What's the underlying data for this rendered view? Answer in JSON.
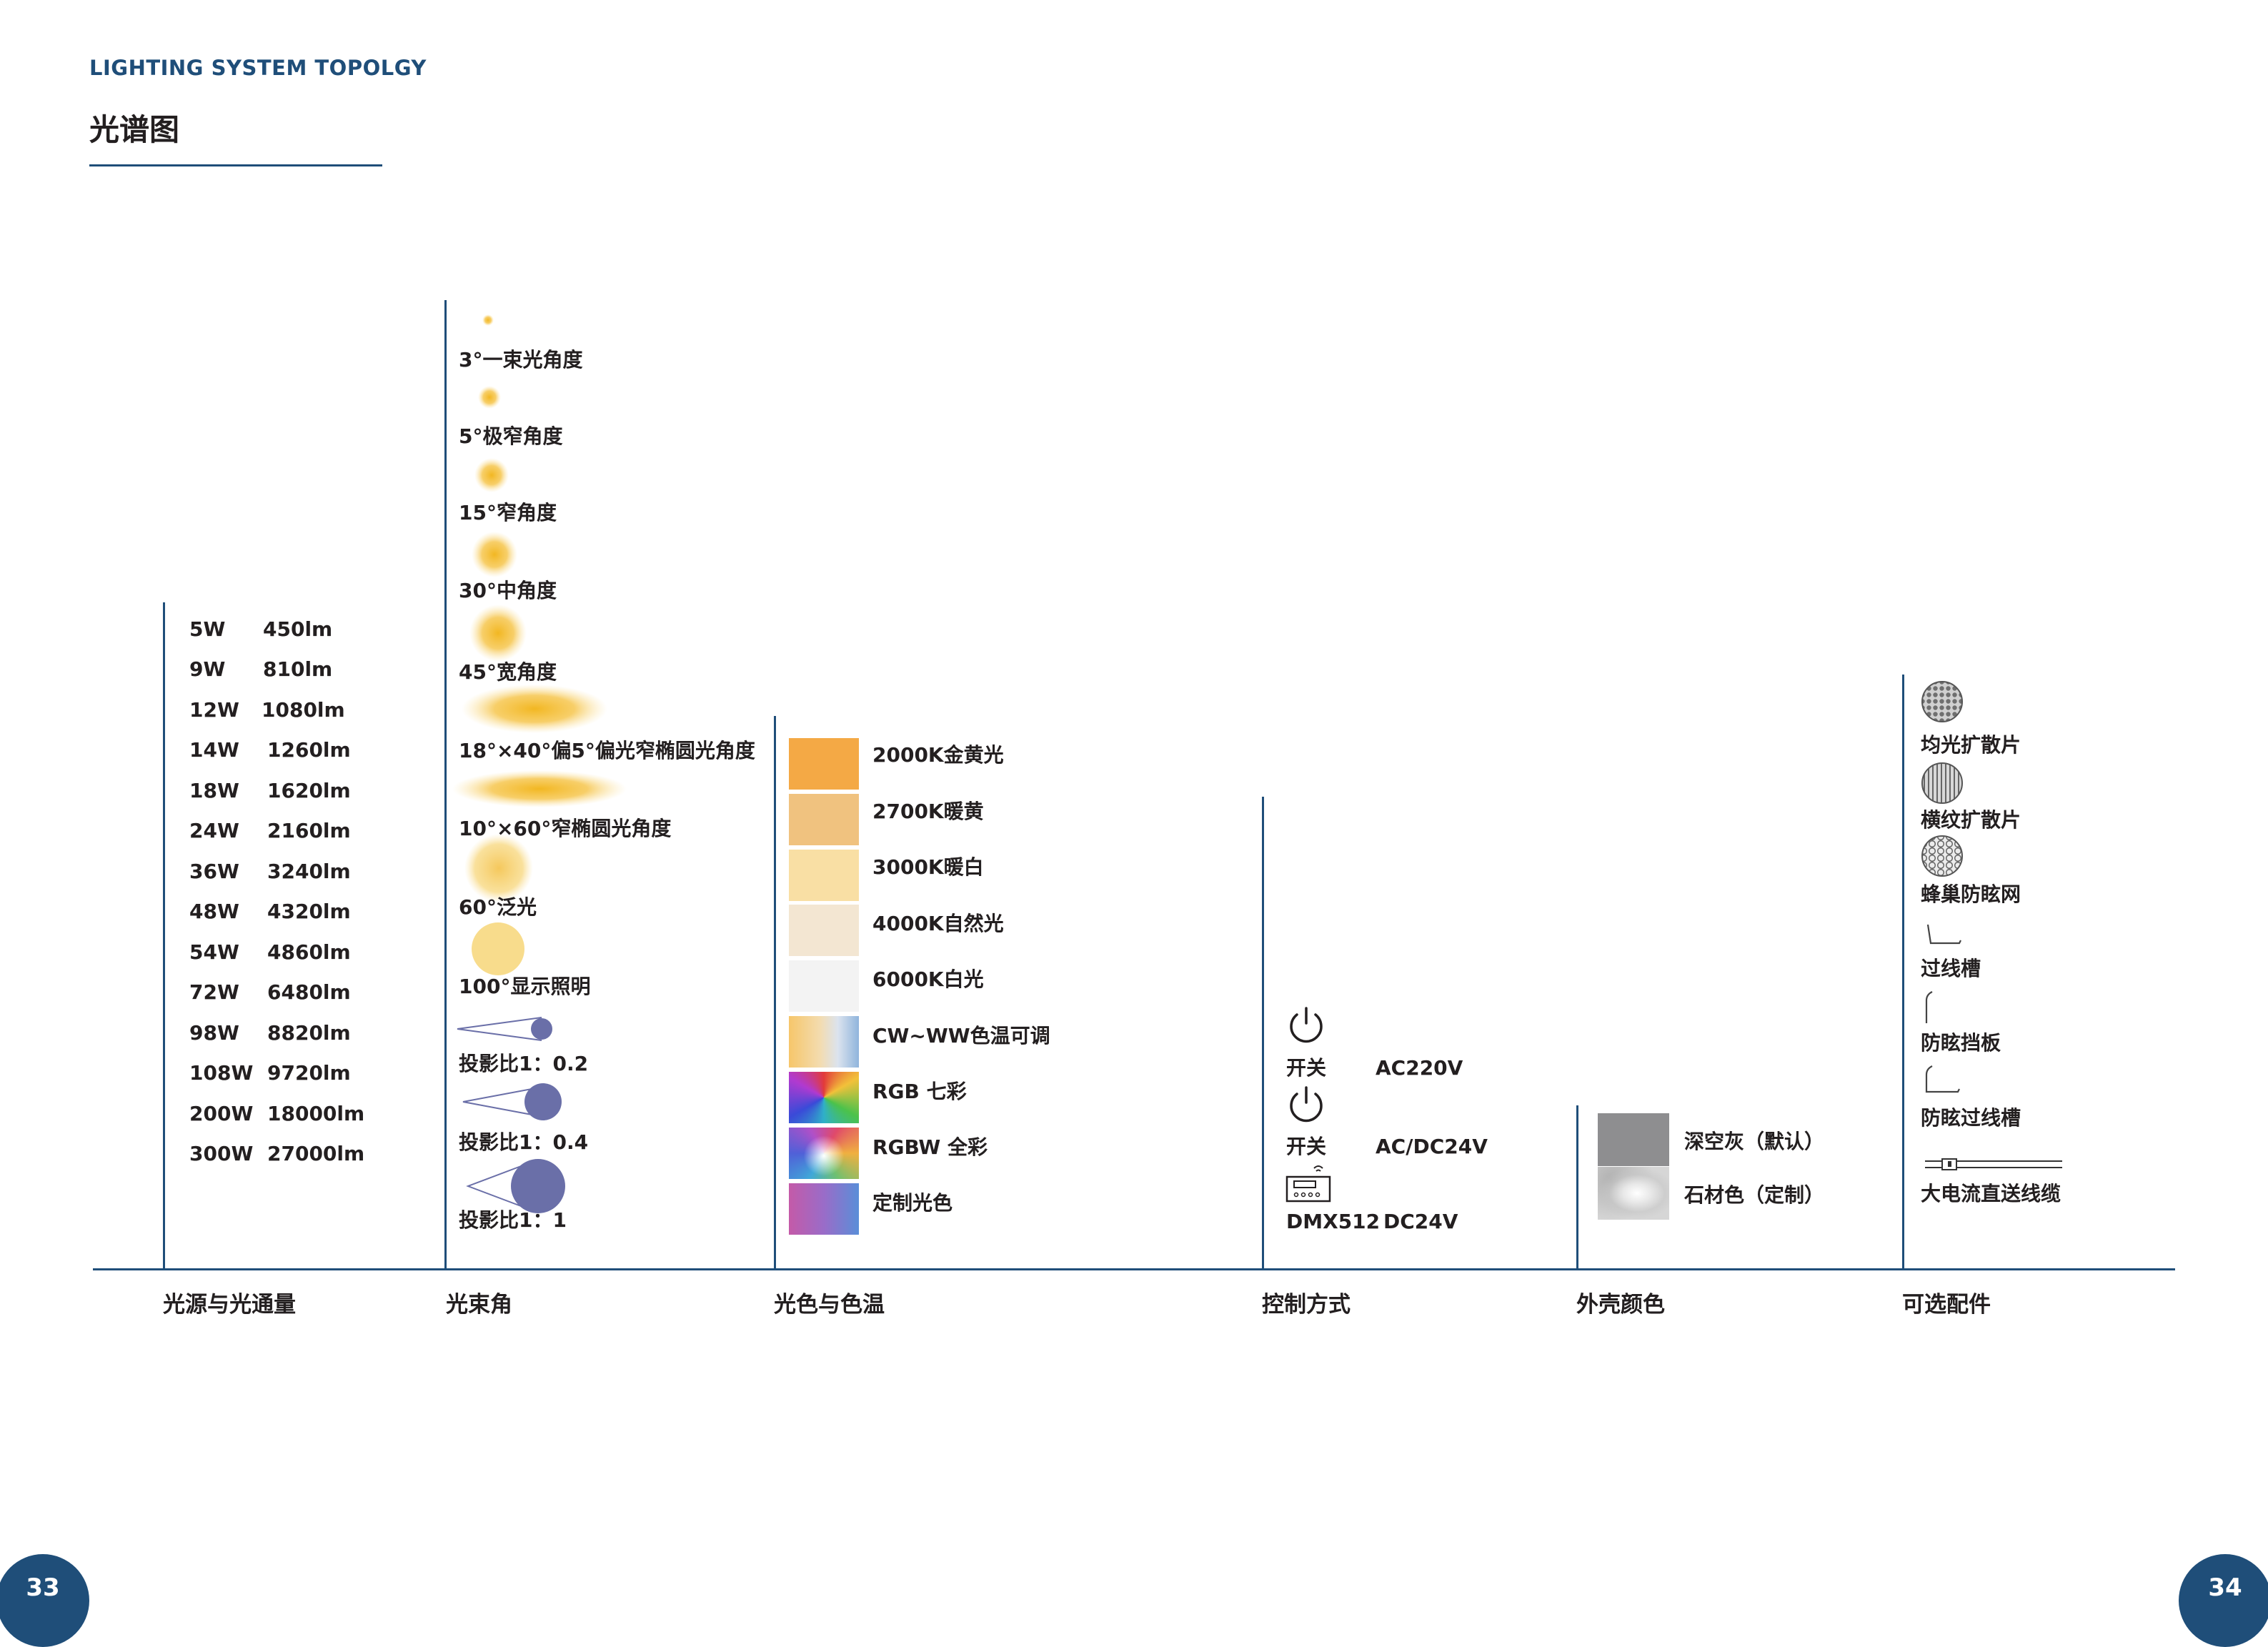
{
  "header": {
    "subtitle": "LIGHTING SYSTEM TOPOLGY",
    "title": "光谱图"
  },
  "categories": {
    "light_source": "光源与光通量",
    "beam_angle": "光束角",
    "light_color": "光色与色温",
    "control": "控制方式",
    "housing_color": "外壳颜色",
    "accessories": "可选配件"
  },
  "flux": [
    {
      "watt": "5W",
      "lumen": "450lm"
    },
    {
      "watt": "9W",
      "lumen": "810lm"
    },
    {
      "watt": "12W",
      "lumen": "1080lm"
    },
    {
      "watt": "14W",
      "lumen": "1260lm"
    },
    {
      "watt": "18W",
      "lumen": "1620lm"
    },
    {
      "watt": "24W",
      "lumen": "2160lm"
    },
    {
      "watt": "36W",
      "lumen": "3240lm"
    },
    {
      "watt": "48W",
      "lumen": "4320lm"
    },
    {
      "watt": "54W",
      "lumen": "4860lm"
    },
    {
      "watt": "72W",
      "lumen": "6480lm"
    },
    {
      "watt": "98W",
      "lumen": "8820lm"
    },
    {
      "watt": "108W",
      "lumen": "9720lm"
    },
    {
      "watt": "200W",
      "lumen": "18000lm"
    },
    {
      "watt": "300W",
      "lumen": "27000lm"
    }
  ],
  "beams": [
    {
      "label": "3°一束光角度",
      "icon": "beam-3deg-icon"
    },
    {
      "label": "5°极窄角度",
      "icon": "beam-5deg-icon"
    },
    {
      "label": "15°窄角度",
      "icon": "beam-15deg-icon"
    },
    {
      "label": "30°中角度",
      "icon": "beam-30deg-icon"
    },
    {
      "label": "45°宽角度",
      "icon": "beam-45deg-icon"
    },
    {
      "label": "18°×40°偏5°偏光窄椭圆光角度",
      "icon": "beam-ellipse-18x40-icon"
    },
    {
      "label": "10°×60°窄椭圆光角度",
      "icon": "beam-ellipse-10x60-icon"
    },
    {
      "label": "60°泛光",
      "icon": "beam-60deg-icon"
    },
    {
      "label": "100°显示照明",
      "icon": "beam-100deg-icon"
    },
    {
      "label": "投影比1：0.2",
      "icon": "projection-ratio-icon"
    },
    {
      "label": "投影比1：0.4",
      "icon": "projection-ratio-icon"
    },
    {
      "label": "投影比1：1",
      "icon": "projection-ratio-icon"
    }
  ],
  "colors": [
    {
      "label": "2000K金黄光",
      "color": "#f4a945"
    },
    {
      "label": "2700K暖黄",
      "color": "#f0c27f"
    },
    {
      "label": "3000K暖白",
      "color": "#f9dfa4"
    },
    {
      "label": "4000K自然光",
      "color": "#f3e6d2"
    },
    {
      "label": "6000K白光",
      "color": "#f3f3f3"
    },
    {
      "label": "CW~WW色温可调",
      "color": "gradient-tunable"
    },
    {
      "label": "RGB 七彩",
      "color": "gradient-rgb"
    },
    {
      "label": "RGBW 全彩",
      "color": "gradient-rgbw"
    },
    {
      "label": "定制光色",
      "color": "gradient-custom"
    }
  ],
  "controls": [
    {
      "name": "开关",
      "voltage": "AC220V",
      "icon": "power-icon"
    },
    {
      "name": "开关",
      "voltage": "AC/DC24V",
      "icon": "power-icon"
    },
    {
      "name": "DMX512",
      "voltage": "DC24V",
      "icon": "dmx-controller-icon"
    }
  ],
  "housing": [
    {
      "label": "深空灰（默认）",
      "color": "#8e8e90"
    },
    {
      "label": "石材色（定制）",
      "color": "stone-texture"
    }
  ],
  "accessories": [
    {
      "label": "均光扩散片",
      "icon": "diffuser-dots-icon"
    },
    {
      "label": "横纹扩散片",
      "icon": "diffuser-lines-icon"
    },
    {
      "label": "蜂巢防眩网",
      "icon": "honeycomb-icon"
    },
    {
      "label": "过线槽",
      "icon": "wire-slot-icon"
    },
    {
      "label": "防眩挡板",
      "icon": "glare-baffle-icon"
    },
    {
      "label": "防眩过线槽",
      "icon": "glare-wire-slot-icon"
    },
    {
      "label": "大电流直送线缆",
      "icon": "cable-icon"
    }
  ],
  "pages": {
    "left": "33",
    "right": "34"
  },
  "theme": {
    "accent": "#1f4e79",
    "beam": "#f2b722",
    "projection": "#6a6fa8"
  }
}
